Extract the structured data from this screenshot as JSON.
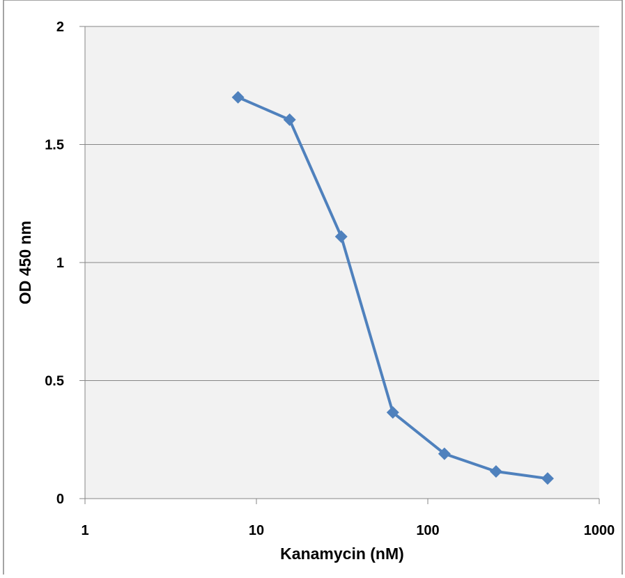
{
  "chart_data": {
    "type": "line",
    "x_label": "Kanamycin (nM)",
    "y_label": "OD 450 nm",
    "x": [
      7.8125,
      15.625,
      31.25,
      62.5,
      125,
      250,
      500
    ],
    "values": [
      1.7,
      1.605,
      1.11,
      0.365,
      0.19,
      0.115,
      0.085
    ],
    "color": "#4f81bd",
    "x_log": true,
    "grid": true,
    "xlim": [
      1,
      1000
    ],
    "xticks": [
      1,
      10,
      100,
      1000
    ],
    "ylim": [
      0,
      2
    ],
    "yticks": [
      0,
      0.5,
      1,
      1.5,
      2
    ]
  }
}
